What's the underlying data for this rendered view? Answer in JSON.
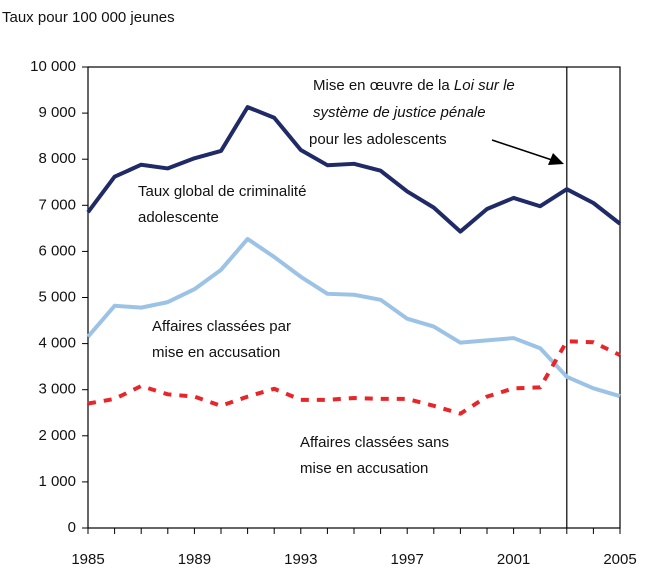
{
  "chart_data": {
    "type": "line",
    "y_label": "Taux pour 100 000 jeunes",
    "x": [
      1985,
      1986,
      1987,
      1988,
      1989,
      1990,
      1991,
      1992,
      1993,
      1994,
      1995,
      1996,
      1997,
      1998,
      1999,
      2000,
      2001,
      2002,
      2003,
      2004,
      2005
    ],
    "series": [
      {
        "name": [
          "Taux global de criminalité",
          "adolescente"
        ],
        "color": "#1f2a66",
        "dash": false,
        "values": [
          6850,
          7620,
          7880,
          7800,
          8020,
          8180,
          9130,
          8900,
          8200,
          7870,
          7900,
          7750,
          7300,
          6950,
          6430,
          6920,
          7160,
          6980,
          7350,
          7050,
          6600
        ]
      },
      {
        "name": [
          "Affaires classées par",
          "mise en accusation"
        ],
        "color": "#9cc3e6",
        "dash": false,
        "values": [
          4150,
          4820,
          4780,
          4900,
          5180,
          5600,
          6270,
          5880,
          5450,
          5080,
          5060,
          4950,
          4540,
          4370,
          4020,
          4070,
          4120,
          3900,
          3280,
          3030,
          2860
        ]
      },
      {
        "name": [
          "Affaires classées sans",
          "mise en accusation"
        ],
        "color": "#e8262a",
        "dash": true,
        "values": [
          2700,
          2800,
          3080,
          2900,
          2850,
          2650,
          2850,
          3020,
          2780,
          2780,
          2820,
          2800,
          2800,
          2650,
          2480,
          2850,
          3030,
          3050,
          4050,
          4030,
          3750
        ]
      }
    ],
    "xlim": [
      1985,
      2005
    ],
    "xticks": [
      1985,
      1989,
      1993,
      1997,
      2001,
      2005
    ],
    "ylim": [
      0,
      10000
    ],
    "yticks": [
      0,
      {
        "value": 1000,
        "label": "1 000"
      },
      {
        "value": 2000,
        "label": "2 000"
      },
      {
        "value": 3000,
        "label": "3 000"
      },
      {
        "value": 4000,
        "label": "4 000"
      },
      {
        "value": 5000,
        "label": "5 000"
      },
      {
        "value": 6000,
        "label": "6 000"
      },
      {
        "value": 7000,
        "label": "7 000"
      },
      {
        "value": 8000,
        "label": "8 000"
      },
      {
        "value": 9000,
        "label": "9 000"
      },
      {
        "value": 10000,
        "label": "10 000"
      }
    ],
    "annotation": {
      "x": 2003,
      "lines": [
        [
          {
            "text": "Mise en œuvre de la "
          },
          {
            "text": "Loi sur le",
            "italic": true
          }
        ],
        [
          {
            "text": "système de justice pénale",
            "italic": true
          }
        ],
        [
          {
            "text": "pour les adolescents"
          }
        ]
      ]
    }
  }
}
